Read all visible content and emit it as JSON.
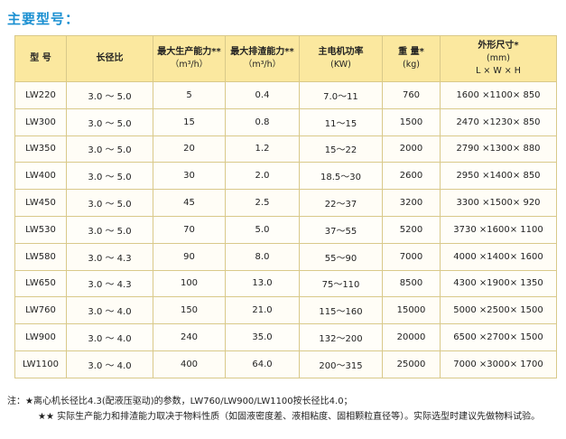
{
  "title": "主要型号：",
  "table": {
    "headers": [
      {
        "main": "型  号",
        "sub": ""
      },
      {
        "main": "长径比",
        "sub": ""
      },
      {
        "main": "最大生产能力**",
        "sub": "（m³/h）"
      },
      {
        "main": "最大排渣能力**",
        "sub": "（m³/h）"
      },
      {
        "main": "主电机功率",
        "sub": "(KW)"
      },
      {
        "main": "重  量*",
        "sub": "(kg)"
      },
      {
        "main": "外形尺寸*",
        "sub": "(mm)",
        "sub2": "L × W × H"
      }
    ],
    "rows": [
      [
        "LW220",
        "3.0 ～ 5.0",
        "5",
        "0.4",
        "7.0～11",
        "760",
        "1600 ×1100× 850"
      ],
      [
        "LW300",
        "3.0 ～ 5.0",
        "15",
        "0.8",
        "11～15",
        "1500",
        "2470 ×1230× 850"
      ],
      [
        "LW350",
        "3.0 ～ 5.0",
        "20",
        "1.2",
        "15～22",
        "2000",
        "2790 ×1300× 880"
      ],
      [
        "LW400",
        "3.0 ～ 5.0",
        "30",
        "2.0",
        "18.5～30",
        "2600",
        "2950 ×1400× 850"
      ],
      [
        "LW450",
        "3.0 ～ 5.0",
        "45",
        "2.5",
        "22～37",
        "3200",
        "3300 ×1500× 920"
      ],
      [
        "LW530",
        "3.0 ～ 5.0",
        "70",
        "5.0",
        "37～55",
        "5200",
        "3730 ×1600× 1100"
      ],
      [
        "LW580",
        "3.0 ～ 4.3",
        "90",
        "8.0",
        "55～90",
        "7000",
        "4000 ×1400× 1600"
      ],
      [
        "LW650",
        "3.0 ～ 4.3",
        "100",
        "13.0",
        "75～110",
        "8500",
        "4300 ×1900× 1350"
      ],
      [
        "LW760",
        "3.0 ～ 4.0",
        "150",
        "21.0",
        "115～160",
        "15000",
        "5000 ×2500× 1500"
      ],
      [
        "LW900",
        "3.0 ～ 4.0",
        "240",
        "35.0",
        "132～200",
        "20000",
        "6500 ×2700× 1500"
      ],
      [
        "LW1100",
        "3.0 ～ 4.0",
        "400",
        "64.0",
        "200～315",
        "25000",
        "7000 ×3000× 1700"
      ]
    ]
  },
  "notes": {
    "note1": "注：★离心机长径比4.3(配液压驱动)的参数，LW760/LW900/LW1100按长径比4.0；",
    "note2": "★★ 实际生产能力和排渣能力取决于物料性质（如固液密度差、液相粘度、固相颗粒直径等）。实际选型时建议先做物料试验。"
  }
}
